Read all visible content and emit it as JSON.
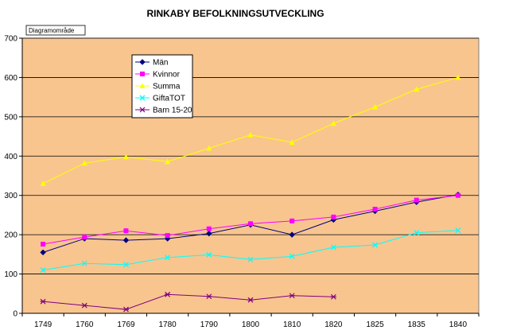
{
  "chart_data": {
    "type": "line",
    "title": "RINKABY BEFOLKNINGSUTVECKLING",
    "area_tag": "Diagramområde",
    "categories": [
      "1749",
      "1760",
      "1769",
      "1780",
      "1790",
      "1800",
      "1810",
      "1820",
      "1825",
      "1835",
      "1840"
    ],
    "ylim": [
      0,
      700
    ],
    "yticks": [
      0,
      100,
      200,
      300,
      400,
      500,
      600,
      700
    ],
    "grid": true,
    "legend_position": "top-left",
    "plot_background": "#f8c58f",
    "series": [
      {
        "name": "Män",
        "color": "#000080",
        "marker": "diamond",
        "values": [
          155,
          190,
          186,
          190,
          203,
          225,
          200,
          238,
          260,
          283,
          302
        ]
      },
      {
        "name": "Kvinnor",
        "color": "#ff00ff",
        "marker": "square",
        "values": [
          176,
          194,
          210,
          198,
          215,
          228,
          235,
          245,
          265,
          288,
          300
        ]
      },
      {
        "name": "Summa",
        "color": "#ffff00",
        "marker": "triangle",
        "values": [
          330,
          382,
          398,
          386,
          420,
          454,
          435,
          483,
          525,
          570,
          600
        ]
      },
      {
        "name": "GiftaTOT",
        "color": "#00ffff",
        "marker": "x",
        "values": [
          110,
          127,
          124,
          142,
          149,
          137,
          145,
          168,
          174,
          205,
          211
        ]
      },
      {
        "name": "Barn 15-20",
        "color": "#800080",
        "marker": "star",
        "values": [
          30,
          20,
          10,
          48,
          43,
          34,
          45,
          42,
          null,
          null,
          null
        ]
      }
    ]
  }
}
